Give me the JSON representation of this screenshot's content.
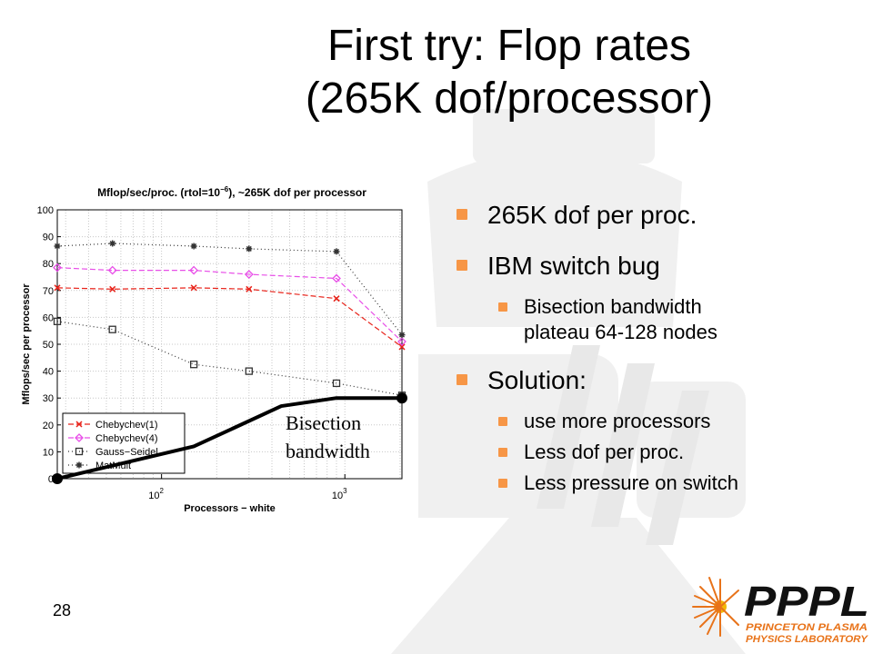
{
  "slide": {
    "title_line1": "First try: Flop rates",
    "title_line2": "(265K dof/processor)",
    "page_number": "28",
    "bullets": [
      "265K dof per proc.",
      "IBM switch bug",
      "Bisection bandwidth",
      "plateau 64-128 nodes",
      "Solution:",
      "use more processors",
      "Less dof per proc.",
      "Less pressure on switch"
    ],
    "logo": {
      "main_text": "PPPL",
      "sub_line1": "PRINCETON PLASMA",
      "sub_line2": "PHYSICS LABORATORY",
      "colors": {
        "black": "#111111",
        "orange": "#e8731a",
        "yellow": "#f2b705"
      }
    },
    "accent_color": "#f79646"
  },
  "chart_data": {
    "type": "line",
    "title_prefix": "Mflop/sec/proc. (rtol=10",
    "title_exp": "−6",
    "title_suffix": "), ~265K dof per processor",
    "xlabel": "Processors − white",
    "ylabel": "Mflops/sec per processor",
    "x_scale": "log",
    "x_tick_labels": [
      {
        "base": "10",
        "exp": "2",
        "value": 100
      },
      {
        "base": "10",
        "exp": "3",
        "value": 1000
      }
    ],
    "xlim": [
      27,
      2048
    ],
    "ylim": [
      0,
      100
    ],
    "y_ticks": [
      0,
      10,
      20,
      30,
      40,
      50,
      60,
      70,
      80,
      90,
      100
    ],
    "grid": true,
    "legend_position": "bottom-left",
    "x": [
      27,
      54,
      150,
      300,
      900,
      2048
    ],
    "series": [
      {
        "name": "Chebychev(1)",
        "color": "#e8231a",
        "marker": "x",
        "dash": "6,3",
        "values": [
          71,
          70.5,
          71,
          70.5,
          67,
          49
        ]
      },
      {
        "name": "Chebychev(4)",
        "color": "#e84fe8",
        "marker": "diamond",
        "dash": "6,3",
        "values": [
          78.5,
          77.5,
          77.5,
          76,
          74.5,
          51
        ]
      },
      {
        "name": "Gauss−Seidel",
        "color": "#333333",
        "marker": "square",
        "dash": "1,3",
        "values": [
          58.5,
          55.5,
          42.5,
          40,
          35.5,
          31
        ]
      },
      {
        "name": "MatMult",
        "color": "#333333",
        "marker": "star",
        "dash": "1,3",
        "values": [
          86.5,
          87.5,
          86.5,
          85.5,
          84.5,
          53.5
        ]
      }
    ],
    "annotation": {
      "label_line1": "Bisection",
      "label_line2": "bandwidth",
      "x": [
        27,
        150,
        450,
        900,
        2048
      ],
      "values": [
        0,
        12,
        27,
        30,
        30
      ]
    }
  }
}
